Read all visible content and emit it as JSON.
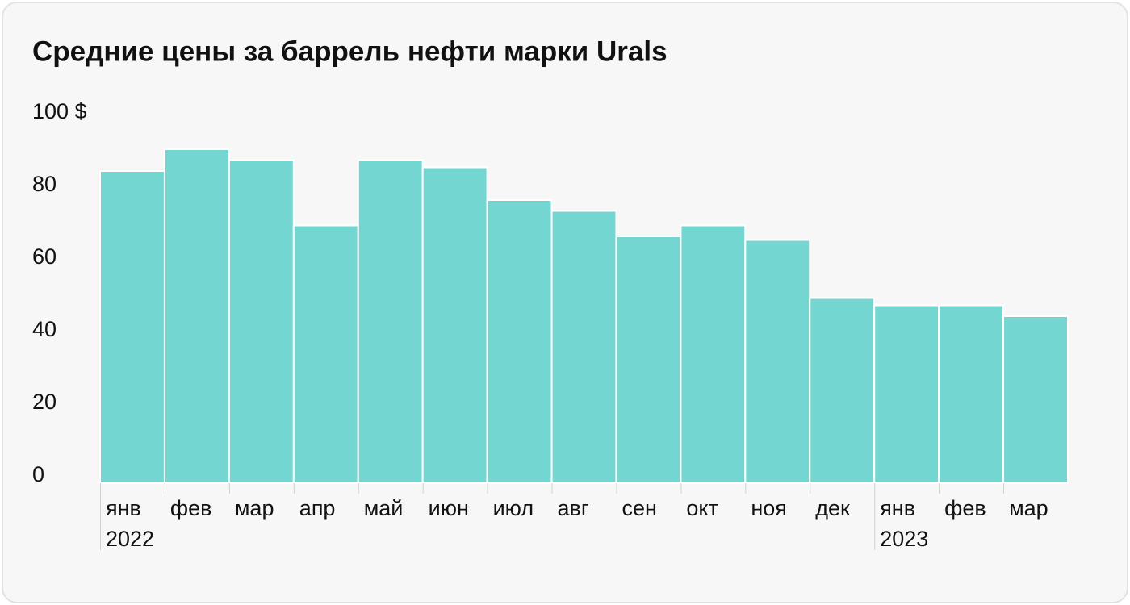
{
  "chart_data": {
    "type": "bar",
    "title": "Средние цены за баррель нефти марки Urals",
    "categories": [
      "янв",
      "фев",
      "мар",
      "апр",
      "май",
      "июн",
      "июл",
      "авг",
      "сен",
      "окт",
      "ноя",
      "дек",
      "янв",
      "фев",
      "мар"
    ],
    "x_groups": [
      {
        "label": "2022",
        "start": 0
      },
      {
        "label": "2023",
        "start": 12
      }
    ],
    "values": [
      86,
      92,
      89,
      71,
      89,
      87,
      78,
      75,
      68,
      71,
      67,
      51,
      49,
      49,
      46
    ],
    "color": "#73d6d1",
    "ylim": [
      0,
      100
    ],
    "yticks": [
      0,
      20,
      40,
      60,
      80,
      {
        "value": 100,
        "label": "100 $"
      }
    ],
    "grid": false
  }
}
